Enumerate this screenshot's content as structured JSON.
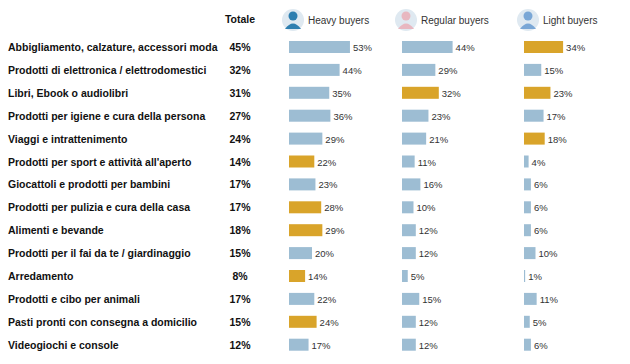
{
  "chart_data": {
    "type": "bar",
    "orientation": "horizontal",
    "data_labels": true,
    "tick_labels": false,
    "grid": false,
    "xlim": [
      0,
      100
    ],
    "categories": [
      "Abbigliamento, calzature, accessori moda",
      "Prodotti di elettronica / elettrodomestici",
      "Libri, Ebook o audiolibri",
      "Prodotti per igiene e cura della persona",
      "Viaggi e intrattenimento",
      "Prodotti per sport e attività all'aperto",
      "Giocattoli e prodotti per bambini",
      "Prodotti per pulizia e cura della casa",
      "Alimenti e bevande",
      "Prodotti per il fai da te / giardinaggio",
      "Arredamento",
      "Prodotti e cibo per animali",
      "Pasti pronti con consegna a domicilio",
      "Videogiochi e console"
    ],
    "series": [
      {
        "name": "Totale",
        "type": "text",
        "values": [
          45,
          32,
          31,
          27,
          24,
          14,
          17,
          17,
          18,
          15,
          8,
          17,
          15,
          12
        ],
        "value_labels": [
          "45%",
          "32%",
          "31%",
          "27%",
          "24%",
          "14%",
          "17%",
          "17%",
          "18%",
          "15%",
          "8%",
          "17%",
          "15%",
          "12%"
        ]
      },
      {
        "name": "Heavy buyers",
        "type": "bar",
        "values": [
          53,
          44,
          35,
          36,
          29,
          22,
          23,
          28,
          29,
          20,
          14,
          22,
          24,
          17
        ],
        "value_labels": [
          "53%",
          "44%",
          "35%",
          "36%",
          "29%",
          "22%",
          "23%",
          "28%",
          "29%",
          "20%",
          "14%",
          "22%",
          "24%",
          "17%"
        ],
        "colors": [
          "#9dbdd3",
          "#9dbdd3",
          "#9dbdd3",
          "#9dbdd3",
          "#9dbdd3",
          "#d9a42a",
          "#9dbdd3",
          "#d9a42a",
          "#d9a42a",
          "#9dbdd3",
          "#d9a42a",
          "#9dbdd3",
          "#d9a42a",
          "#9dbdd3"
        ]
      },
      {
        "name": "Regular buyers",
        "type": "bar",
        "values": [
          44,
          29,
          32,
          23,
          21,
          11,
          16,
          10,
          12,
          12,
          5,
          15,
          12,
          12
        ],
        "value_labels": [
          "44%",
          "29%",
          "32%",
          "23%",
          "21%",
          "11%",
          "16%",
          "10%",
          "12%",
          "12%",
          "5%",
          "15%",
          "12%",
          "12%"
        ],
        "colors": [
          "#9dbdd3",
          "#9dbdd3",
          "#d9a42a",
          "#9dbdd3",
          "#9dbdd3",
          "#9dbdd3",
          "#9dbdd3",
          "#9dbdd3",
          "#9dbdd3",
          "#9dbdd3",
          "#9dbdd3",
          "#9dbdd3",
          "#9dbdd3",
          "#9dbdd3"
        ]
      },
      {
        "name": "Light buyers",
        "type": "bar",
        "values": [
          34,
          15,
          23,
          17,
          18,
          4,
          6,
          6,
          6,
          10,
          1,
          11,
          5,
          6
        ],
        "value_labels": [
          "34%",
          "15%",
          "23%",
          "17%",
          "18%",
          "4%",
          "6%",
          "6%",
          "6%",
          "10%",
          "1%",
          "11%",
          "5%",
          "6%"
        ],
        "colors": [
          "#d9a42a",
          "#9dbdd3",
          "#d9a42a",
          "#9dbdd3",
          "#d9a42a",
          "#9dbdd3",
          "#9dbdd3",
          "#9dbdd3",
          "#9dbdd3",
          "#9dbdd3",
          "#9dbdd3",
          "#9dbdd3",
          "#9dbdd3",
          "#9dbdd3"
        ]
      }
    ]
  }
}
